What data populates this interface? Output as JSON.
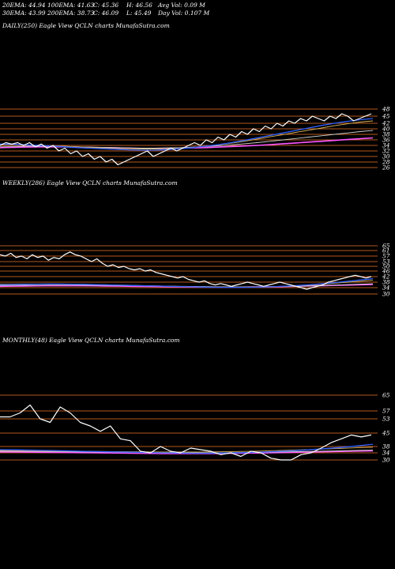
{
  "header": {
    "row1": [
      "20EMA: 44.94",
      "100EMA: 41.63",
      "C: 45.36",
      "H: 46.56",
      "Avg Vol: 0.09 M"
    ],
    "row2": [
      "30EMA: 43.99",
      "200EMA: 38.73",
      "C: 46.09",
      "L: 45.49",
      "Day Vol: 0.107 M"
    ]
  },
  "colors": {
    "background": "#000000",
    "grid": "#b5581e",
    "price": "#ffffff",
    "ema_blue": "#2f5fff",
    "ema_gold": "#d8b35a",
    "ema_magenta": "#ff55ff",
    "ema_white": "#d0d0d0"
  },
  "panels": [
    {
      "title": "DAILY(250) Eagle  View  QCLN  charts MunafaSutra.com",
      "ticks": [
        "48",
        "45",
        "42",
        "40",
        "38",
        "36",
        "34",
        "32",
        "30",
        "28",
        "26"
      ]
    },
    {
      "title": "WEEKLY(286) Eagle  View  QCLN  charts MunafaSutra.com",
      "ticks": [
        "65",
        "61",
        "57",
        "53",
        "50",
        "46",
        "42",
        "38",
        "34",
        "30"
      ]
    },
    {
      "title": "MONTHLY(48) Eagle  View  QCLN  charts MunafaSutra.com",
      "ticks": [
        "65",
        "57",
        "53",
        "45",
        "38",
        "34",
        "30"
      ]
    }
  ],
  "chart_data": [
    {
      "type": "line",
      "period": "DAILY",
      "y_axis_ticks": [
        48,
        45,
        42,
        40,
        38,
        36,
        34,
        32,
        30,
        28,
        26
      ],
      "price_points": 250,
      "series": [
        {
          "values": [
            34,
            35,
            34.5,
            35,
            34,
            35,
            33.5,
            34.5,
            33,
            34,
            32,
            33,
            31,
            32,
            30,
            31,
            29,
            30,
            28,
            29,
            27,
            28,
            29,
            30,
            31,
            32,
            30,
            31,
            32,
            33,
            32,
            33,
            34,
            35,
            34,
            36,
            35,
            37,
            36,
            38,
            37,
            39,
            38,
            40,
            39,
            41,
            40,
            42,
            41,
            43,
            42,
            44,
            43,
            45,
            44,
            43,
            45,
            44,
            46,
            45,
            43,
            44,
            45,
            46
          ]
        },
        {
          "values": [
            34.5,
            34.4,
            34.2,
            34,
            33.8,
            33.5,
            33.2,
            33,
            32.8,
            32.6,
            32.4,
            32.3,
            32.3,
            32.5,
            32.8,
            33.2,
            33.7,
            34.3,
            35,
            35.8,
            36.7,
            37.6,
            38.5,
            39.4,
            40.3,
            41.2,
            42,
            42.8,
            43.5,
            44
          ]
        },
        {
          "values": [
            34.3,
            34.2,
            34.1,
            34,
            33.9,
            33.7,
            33.5,
            33.3,
            33.1,
            32.9,
            32.8,
            32.7,
            32.7,
            32.8,
            33,
            33.3,
            33.7,
            34.2,
            34.8,
            35.5,
            36.3,
            37.1,
            37.9,
            38.7,
            39.5,
            40.3,
            41.1,
            41.8,
            42.5,
            43
          ]
        },
        {
          "values": [
            33.5,
            33.6,
            33.7,
            33.7,
            33.7,
            33.6,
            33.5,
            33.4,
            33.3,
            33.2,
            33.1,
            33,
            33,
            33.1,
            33.2,
            33.4,
            33.6,
            33.9,
            34.2,
            34.6,
            35,
            35.5,
            36,
            36.5,
            37,
            37.5,
            38,
            38.5,
            39,
            39.4
          ]
        },
        {
          "values": [
            33.2,
            33.3,
            33.4,
            33.5,
            33.5,
            33.5,
            33.4,
            33.3,
            33.2,
            33.1,
            33,
            32.9,
            32.9,
            32.9,
            33,
            33.1,
            33.2,
            33.4,
            33.6,
            33.8,
            34,
            34.3,
            34.6,
            34.9,
            35.2,
            35.5,
            35.8,
            36.1,
            36.4,
            36.7
          ]
        }
      ]
    },
    {
      "type": "line",
      "period": "WEEKLY",
      "y_axis_ticks": [
        65,
        61,
        57,
        53,
        50,
        46,
        42,
        38,
        34,
        30
      ],
      "price_points": 286,
      "series": [
        {
          "values": [
            58,
            57,
            59,
            56,
            57,
            55,
            58,
            56,
            57,
            54,
            56,
            55,
            58,
            60,
            58,
            57,
            55,
            53,
            55,
            52,
            50,
            51,
            49,
            50,
            48,
            47,
            48,
            46,
            47,
            45,
            44,
            43,
            42,
            41,
            42,
            40,
            39,
            38,
            39,
            37,
            36,
            37,
            36,
            35,
            36,
            37,
            38,
            37,
            36,
            35,
            36,
            37,
            38,
            37,
            36,
            35,
            34,
            33,
            34,
            35,
            36,
            38,
            39,
            40,
            41,
            42,
            43,
            42,
            41,
            42
          ]
        },
        {
          "values": [
            36,
            36.2,
            36.4,
            36.5,
            36.6,
            36.6,
            36.5,
            36.4,
            36.2,
            36,
            35.8,
            35.6,
            35.4,
            35.2,
            35,
            34.8,
            34.6,
            34.4,
            34.3,
            34.2,
            34.2,
            34.3,
            34.5,
            34.8,
            35.2,
            35.7,
            36.3,
            37,
            37.8,
            38.7,
            39.6,
            40.5
          ]
        },
        {
          "values": [
            36.5,
            36.6,
            36.7,
            36.7,
            36.7,
            36.6,
            36.5,
            36.4,
            36.3,
            36.1,
            35.9,
            35.7,
            35.5,
            35.3,
            35.1,
            34.9,
            34.7,
            34.6,
            34.5,
            34.4,
            34.4,
            34.5,
            34.6,
            34.8,
            35.1,
            35.5,
            36,
            36.6,
            37.3,
            38,
            38.7,
            39.4
          ]
        },
        {
          "values": [
            35.5,
            35.6,
            35.7,
            35.8,
            35.9,
            35.9,
            35.9,
            35.8,
            35.7,
            35.6,
            35.5,
            35.4,
            35.3,
            35.2,
            35.1,
            35,
            34.9,
            34.8,
            34.7,
            34.6,
            34.6,
            34.6,
            34.7,
            34.8,
            34.9,
            35.1,
            35.3,
            35.6,
            35.9,
            36.2,
            36.5,
            36.8
          ]
        },
        {
          "values": [
            35,
            35.1,
            35.2,
            35.3,
            35.4,
            35.4,
            35.4,
            35.4,
            35.3,
            35.2,
            35.1,
            35,
            34.9,
            34.8,
            34.7,
            34.6,
            34.5,
            34.4,
            34.4,
            34.4,
            34.4,
            34.5,
            34.6,
            34.7,
            34.9,
            35.1,
            35.3,
            35.5,
            35.7,
            35.9,
            36.1,
            36.3
          ]
        }
      ]
    },
    {
      "type": "line",
      "period": "MONTHLY",
      "y_axis_ticks": [
        65,
        57,
        53,
        45,
        38,
        34,
        30
      ],
      "price_points": 48,
      "series": [
        {
          "values": [
            54,
            54,
            56,
            60,
            53,
            51,
            59,
            56,
            51,
            49,
            46,
            49,
            42,
            41,
            35,
            34,
            38,
            35,
            34,
            37,
            36,
            35,
            33,
            34,
            32,
            35,
            34,
            31,
            30,
            30,
            33,
            34,
            37,
            40,
            42,
            44,
            43,
            44
          ]
        },
        {
          "values": [
            36,
            35.9,
            35.7,
            35.5,
            35.3,
            35,
            34.8,
            34.6,
            34.4,
            34.2,
            34,
            33.9,
            33.8,
            33.8,
            33.9,
            34.1,
            34.4,
            34.8,
            35.3,
            35.9,
            36.6,
            37.4,
            38.3,
            39.2
          ]
        },
        {
          "values": [
            35.5,
            35.4,
            35.3,
            35.2,
            35.1,
            35,
            34.9,
            34.8,
            34.7,
            34.6,
            34.5,
            34.5,
            34.5,
            34.6,
            34.7,
            34.9,
            35.1,
            35.4,
            35.7,
            36,
            36.4,
            36.8,
            37.2,
            37.6
          ]
        },
        {
          "values": [
            35,
            35,
            34.9,
            34.8,
            34.7,
            34.6,
            34.5,
            34.4,
            34.3,
            34.2,
            34.1,
            34,
            34,
            34,
            34.1,
            34.2,
            34.3,
            34.5,
            34.7,
            34.9,
            35.1,
            35.3,
            35.5,
            35.7
          ]
        },
        {
          "values": [
            34.5,
            34.5,
            34.4,
            34.3,
            34.2,
            34.1,
            34,
            33.9,
            33.8,
            33.7,
            33.6,
            33.6,
            33.6,
            33.6,
            33.7,
            33.8,
            33.9,
            34.1,
            34.3,
            34.5,
            34.7,
            34.9,
            35.1,
            35.3
          ]
        }
      ]
    }
  ]
}
